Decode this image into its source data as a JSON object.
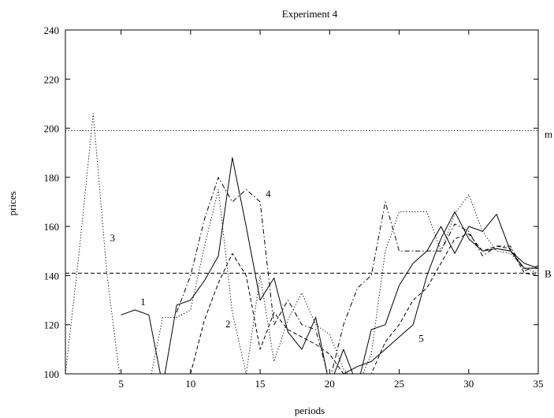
{
  "chart_data": {
    "type": "line",
    "title": "Experiment 4",
    "xlabel": "periods",
    "ylabel": "prices",
    "xlim": [
      1,
      35
    ],
    "ylim": [
      100,
      240
    ],
    "grid": false,
    "legend": "none",
    "x_ticks": [
      5,
      10,
      15,
      20,
      25,
      30,
      35
    ],
    "y_ticks": [
      100,
      120,
      140,
      160,
      180,
      200,
      220,
      240
    ],
    "reference_lines": [
      {
        "label": "m",
        "y": 199,
        "style": "dotted"
      },
      {
        "label": "B",
        "y": 141,
        "style": "dashed"
      }
    ],
    "series": [
      {
        "name": "1",
        "style": "solid",
        "label_at": [
          6.4,
          128
        ],
        "x": [
          5,
          6,
          7,
          8,
          9,
          10,
          11,
          12,
          13,
          14,
          15,
          16,
          17,
          18,
          19,
          20,
          21,
          22,
          23,
          24,
          25,
          26,
          27,
          28,
          29,
          30,
          31,
          32,
          33,
          34,
          35
        ],
        "y": [
          124,
          126,
          124,
          95,
          128,
          130,
          138,
          148,
          188,
          160,
          130,
          139,
          117,
          110,
          123,
          95,
          110,
          95,
          118,
          120,
          136,
          145,
          150,
          160,
          149,
          160,
          158,
          165,
          150,
          145,
          143
        ]
      },
      {
        "name": "2",
        "style": "dashed",
        "label_at": [
          12.5,
          119
        ],
        "x": [
          10,
          11,
          12,
          13,
          14,
          15,
          16,
          17,
          18,
          19,
          20,
          21,
          22,
          23,
          24,
          25,
          26,
          27,
          28,
          29,
          30,
          31,
          32,
          33,
          34,
          35
        ],
        "y": [
          100,
          122,
          137,
          149,
          140,
          110,
          125,
          118,
          115,
          112,
          108,
          100,
          95,
          100,
          113,
          120,
          130,
          135,
          145,
          155,
          157,
          150,
          152,
          151,
          141,
          140
        ]
      },
      {
        "name": "3",
        "style": "dotted",
        "label_at": [
          4.2,
          154
        ],
        "x": [
          1,
          2,
          3,
          4,
          5,
          6,
          7,
          8,
          9,
          10,
          11,
          12,
          13,
          14,
          15,
          16,
          17,
          18,
          19,
          20,
          21,
          22,
          23,
          24,
          25,
          26,
          27,
          28,
          29,
          30,
          31,
          32,
          33,
          34,
          35
        ],
        "y": [
          100,
          150,
          206,
          140,
          95,
          95,
          95,
          123,
          123,
          126,
          152,
          175,
          125,
          100,
          140,
          105,
          122,
          133,
          120,
          116,
          102,
          95,
          108,
          150,
          166,
          166,
          166,
          150,
          165,
          173,
          158,
          150,
          149,
          143,
          141
        ]
      },
      {
        "name": "4",
        "style": "dashdot",
        "label_at": [
          15.4,
          172
        ],
        "x": [
          9,
          10,
          11,
          12,
          13,
          14,
          15,
          16,
          17,
          18,
          19,
          20,
          21,
          22,
          23,
          24,
          25,
          26,
          27,
          28,
          29,
          30,
          31,
          32,
          33,
          34,
          35
        ],
        "y": [
          125,
          140,
          163,
          180,
          170,
          175,
          170,
          120,
          130,
          120,
          118,
          97,
          120,
          135,
          140,
          170,
          150,
          150,
          150,
          150,
          161,
          158,
          148,
          152,
          152,
          142,
          144
        ]
      },
      {
        "name": "5",
        "style": "solid",
        "label_at": [
          26.4,
          113
        ],
        "x": [
          21,
          22,
          23,
          24,
          25,
          26,
          27,
          28,
          29,
          30,
          31,
          32,
          33,
          34,
          35
        ],
        "y": [
          100,
          103,
          105,
          110,
          115,
          120,
          140,
          155,
          166,
          155,
          150,
          151,
          150,
          143,
          143
        ]
      }
    ]
  }
}
